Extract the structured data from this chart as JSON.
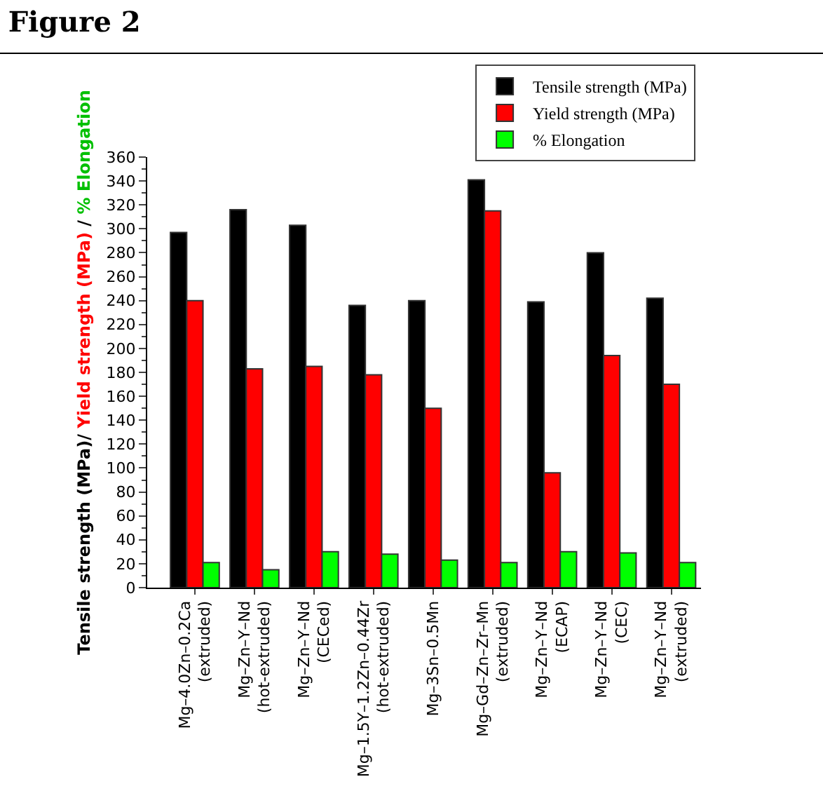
{
  "chart_data": {
    "type": "bar",
    "title": "Figure 2",
    "ylabel": "Tensile strength (MPa)/ Yield strength (MPa) / % Elongation",
    "categories": [
      "Mg–4.0Zn–0.2Ca\n(extruded)",
      "Mg–Zn–Y–Nd\n(hot-extruded)",
      "Mg–Zn–Y–Nd\n(CECed)",
      "Mg–1.5Y–1.2Zn–0.44Zr\n(hot-extruded)",
      "Mg–3Sn–0.5Mn",
      "Mg–Gd–Zn–Zr–Mn\n(extruded)",
      "Mg–Zn–Y–Nd\n(ECAP)",
      "Mg–Zn–Y–Nd\n(CEC)",
      "Mg–Zn–Y–Nd\n(extruded)"
    ],
    "series": [
      {
        "name": "Tensile strength (MPa)",
        "color": "#000000",
        "values": [
          297,
          316,
          303,
          236,
          240,
          341,
          239,
          280,
          242
        ]
      },
      {
        "name": "Yield strength (MPa)",
        "color": "#ff0000",
        "values": [
          240,
          183,
          185,
          178,
          150,
          315,
          96,
          194,
          170
        ]
      },
      {
        "name": "% Elongation",
        "color": "#00ff00",
        "values": [
          21,
          15,
          30,
          28,
          23,
          21,
          30,
          29,
          21
        ]
      }
    ],
    "ylim": [
      0,
      360
    ],
    "yticks": [
      0,
      20,
      40,
      60,
      80,
      100,
      120,
      140,
      160,
      180,
      200,
      220,
      240,
      260,
      280,
      300,
      320,
      340,
      360
    ],
    "legend": "top right"
  }
}
